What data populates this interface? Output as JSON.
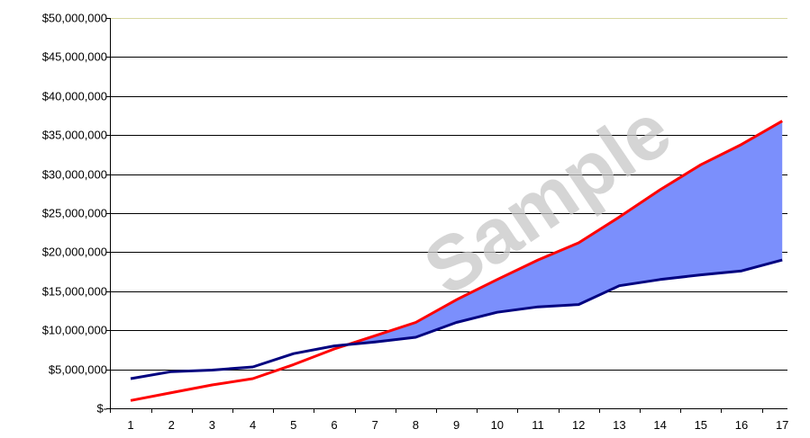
{
  "chart_data": {
    "type": "line",
    "title": "",
    "xlabel": "",
    "ylabel": "",
    "ylim": [
      0,
      50000000
    ],
    "y_ticks": [
      0,
      5000000,
      10000000,
      15000000,
      20000000,
      25000000,
      30000000,
      35000000,
      40000000,
      45000000,
      50000000
    ],
    "y_tick_labels": [
      "$-",
      "$5,000,000",
      "$10,000,000",
      "$15,000,000",
      "$20,000,000",
      "$25,000,000",
      "$30,000,000",
      "$35,000,000",
      "$40,000,000",
      "$45,000,000",
      "$50,000,000"
    ],
    "categories": [
      "1",
      "2",
      "3",
      "4",
      "5",
      "6",
      "7",
      "8",
      "9",
      "10",
      "11",
      "12",
      "13",
      "14",
      "15",
      "16",
      "17"
    ],
    "series": [
      {
        "color": "#ff0000",
        "values": [
          1000000,
          2000000,
          3000000,
          3800000,
          5600000,
          7600000,
          9300000,
          11000000,
          13900000,
          16500000,
          19000000,
          21200000,
          24500000,
          28000000,
          31200000,
          33800000,
          36800000
        ]
      },
      {
        "color": "#00007f",
        "values": [
          3800000,
          4700000,
          4900000,
          5300000,
          7000000,
          8000000,
          8500000,
          9100000,
          11000000,
          12300000,
          13000000,
          13300000,
          15700000,
          16500000,
          17100000,
          17600000,
          19000000
        ]
      }
    ],
    "fill_between": {
      "color": "#7b8ffc"
    },
    "grid": true,
    "grid_color": "#000000",
    "top_grid_color": "#d8d8a0",
    "legend": "none",
    "watermark": "Sample"
  }
}
